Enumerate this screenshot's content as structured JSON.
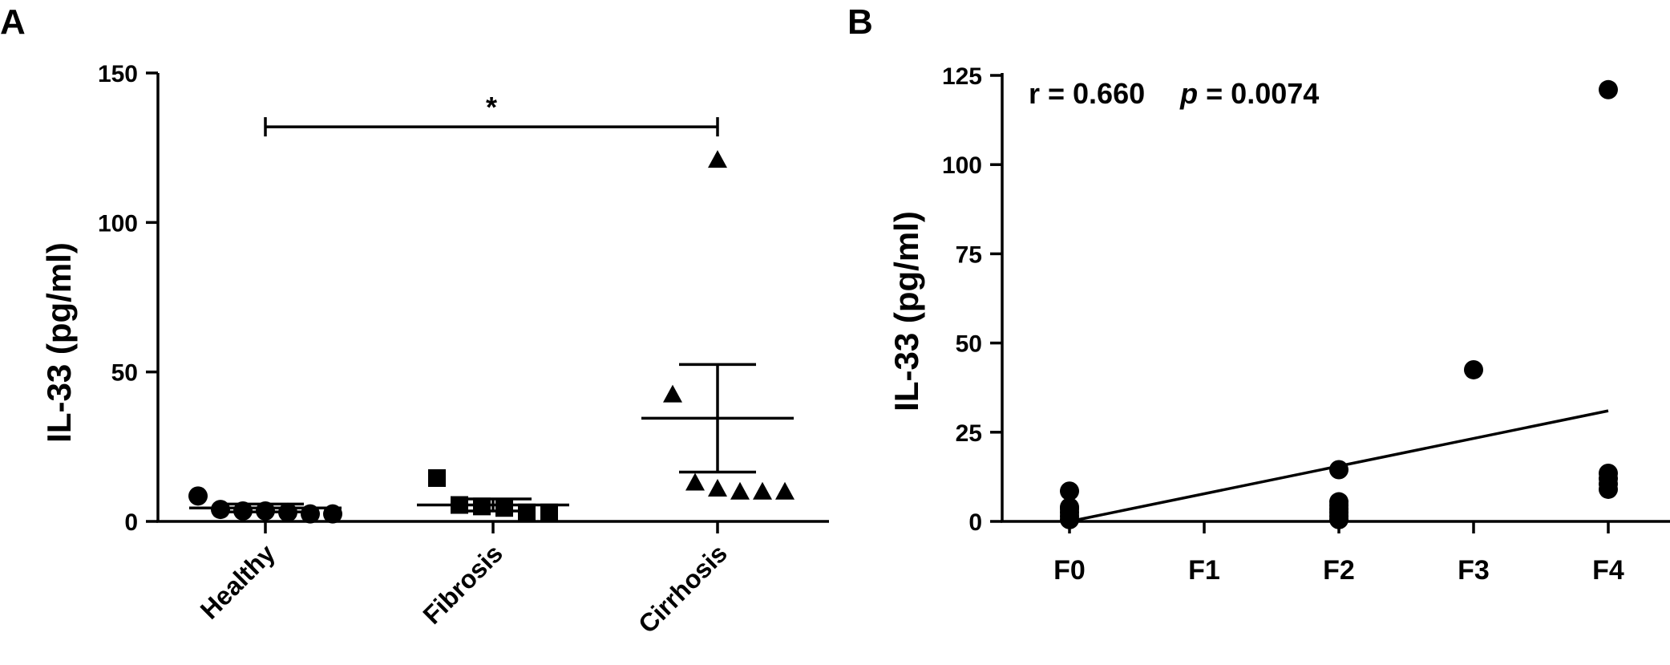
{
  "chart_data": [
    {
      "panel": "A",
      "type": "scatter",
      "ylabel": "IL-33 (pg/ml)",
      "ylim": [
        0,
        150
      ],
      "yticks": [
        0,
        50,
        100,
        150
      ],
      "categories": [
        "Healthy",
        "Fibrosis",
        "Cirrhosis"
      ],
      "groups": [
        {
          "category": "Healthy",
          "marker": "circle",
          "values": [
            8.5,
            4,
            3.5,
            3.5,
            3,
            2.5,
            2.5
          ],
          "mean": 4.5,
          "sem_upper": 5.8,
          "sem_lower": 3.2
        },
        {
          "category": "Fibrosis",
          "marker": "square",
          "values": [
            14.5,
            5.5,
            5,
            4.5,
            3,
            3
          ],
          "mean": 5.5,
          "sem_upper": 7.5,
          "sem_lower": 3.5
        },
        {
          "category": "Cirrhosis",
          "marker": "triangle",
          "values": [
            121,
            42.5,
            13,
            11,
            10,
            10,
            10
          ],
          "mean": 34.5,
          "sem_upper": 52.5,
          "sem_lower": 16.5
        }
      ],
      "significance": {
        "from": "Healthy",
        "to": "Cirrhosis",
        "label": "*",
        "y": 132
      }
    },
    {
      "panel": "B",
      "type": "scatter",
      "ylabel": "IL-33 (pg/ml)",
      "ylim": [
        0,
        125
      ],
      "yticks": [
        0,
        25,
        50,
        75,
        100,
        125
      ],
      "categories": [
        "F0",
        "F1",
        "F2",
        "F3",
        "F4"
      ],
      "points": [
        {
          "x": "F0",
          "y": 8.5
        },
        {
          "x": "F0",
          "y": 4
        },
        {
          "x": "F0",
          "y": 3.5
        },
        {
          "x": "F0",
          "y": 2.5
        },
        {
          "x": "F0",
          "y": 1.5
        },
        {
          "x": "F0",
          "y": 0.5
        },
        {
          "x": "F2",
          "y": 14.5
        },
        {
          "x": "F2",
          "y": 5.5
        },
        {
          "x": "F2",
          "y": 4.5
        },
        {
          "x": "F2",
          "y": 3.5
        },
        {
          "x": "F2",
          "y": 2.5
        },
        {
          "x": "F2",
          "y": 1.5
        },
        {
          "x": "F2",
          "y": 0.5
        },
        {
          "x": "F3",
          "y": 42.5
        },
        {
          "x": "F4",
          "y": 121
        },
        {
          "x": "F4",
          "y": 13.5
        },
        {
          "x": "F4",
          "y": 12
        },
        {
          "x": "F4",
          "y": 10.5
        },
        {
          "x": "F4",
          "y": 9
        }
      ],
      "regression": {
        "from": {
          "x": "F0",
          "y": 0
        },
        "to": {
          "x": "F4",
          "y": 31
        }
      },
      "annotation": {
        "r_text": "r = 0.660",
        "p_symbol": "p",
        "p_text": " = 0.0074"
      }
    }
  ]
}
